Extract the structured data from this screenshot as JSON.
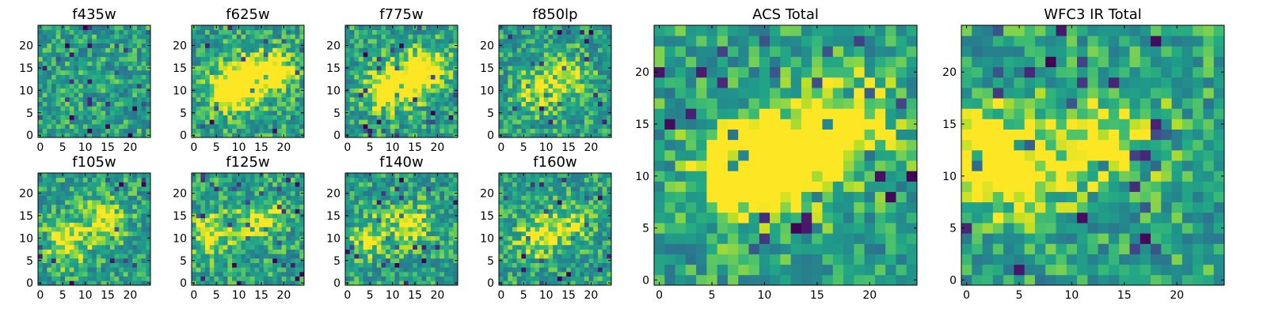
{
  "chart_data": [
    {
      "type": "heatmap",
      "title": "f435w",
      "x_ticks": [
        "0",
        "5",
        "10",
        "15",
        "20"
      ],
      "y_ticks": [
        "0",
        "5",
        "10",
        "15",
        "20"
      ],
      "xlim": [
        -0.5,
        24.5
      ],
      "ylim": [
        -0.5,
        24.5
      ],
      "grid": false,
      "colormap": "viridis",
      "grid_size": 25,
      "source_blobs": []
    },
    {
      "type": "heatmap",
      "title": "f625w",
      "x_ticks": [
        "0",
        "5",
        "10",
        "15",
        "20"
      ],
      "y_ticks": [
        "0",
        "5",
        "10",
        "15",
        "20"
      ],
      "xlim": [
        -0.5,
        24.5
      ],
      "ylim": [
        -0.5,
        24.5
      ],
      "grid": false,
      "colormap": "viridis",
      "grid_size": 25,
      "source_blobs": [
        {
          "x": 8,
          "y": 10,
          "amp": 0.55
        },
        {
          "x": 13,
          "y": 12.5,
          "amp": 0.45
        },
        {
          "x": 18,
          "y": 14.5,
          "amp": 0.4
        }
      ]
    },
    {
      "type": "heatmap",
      "title": "f775w",
      "x_ticks": [
        "0",
        "5",
        "10",
        "15",
        "20"
      ],
      "y_ticks": [
        "0",
        "5",
        "10",
        "15",
        "20"
      ],
      "xlim": [
        -0.5,
        24.5
      ],
      "ylim": [
        -0.5,
        24.5
      ],
      "grid": false,
      "colormap": "viridis",
      "grid_size": 25,
      "source_blobs": [
        {
          "x": 8,
          "y": 10,
          "amp": 0.45
        },
        {
          "x": 14,
          "y": 12.5,
          "amp": 0.4
        },
        {
          "x": 18,
          "y": 15,
          "amp": 0.35
        }
      ]
    },
    {
      "type": "heatmap",
      "title": "f850lp",
      "x_ticks": [
        "0",
        "5",
        "10",
        "15",
        "20"
      ],
      "y_ticks": [
        "0",
        "5",
        "10",
        "15",
        "20"
      ],
      "xlim": [
        -0.5,
        24.5
      ],
      "ylim": [
        -0.5,
        24.5
      ],
      "grid": false,
      "colormap": "viridis",
      "grid_size": 25,
      "source_blobs": [
        {
          "x": 8,
          "y": 10,
          "amp": 0.3
        },
        {
          "x": 15,
          "y": 13,
          "amp": 0.25
        }
      ]
    },
    {
      "type": "heatmap",
      "title": "f105w",
      "x_ticks": [
        "0",
        "5",
        "10",
        "15",
        "20"
      ],
      "y_ticks": [
        "0",
        "5",
        "10",
        "15",
        "20"
      ],
      "xlim": [
        -0.5,
        24.5
      ],
      "ylim": [
        -0.5,
        24.5
      ],
      "grid": false,
      "colormap": "viridis",
      "grid_size": 25,
      "source_blobs": [
        {
          "x": 6,
          "y": 9,
          "amp": 0.35
        },
        {
          "x": 14,
          "y": 14,
          "amp": 0.3
        }
      ]
    },
    {
      "type": "heatmap",
      "title": "f125w",
      "x_ticks": [
        "0",
        "5",
        "10",
        "15",
        "20"
      ],
      "y_ticks": [
        "0",
        "5",
        "10",
        "15",
        "20"
      ],
      "xlim": [
        -0.5,
        24.5
      ],
      "ylim": [
        -0.5,
        24.5
      ],
      "grid": false,
      "colormap": "viridis",
      "grid_size": 25,
      "source_blobs": [
        {
          "x": 4,
          "y": 11,
          "amp": 0.35
        },
        {
          "x": 15,
          "y": 14,
          "amp": 0.3
        }
      ]
    },
    {
      "type": "heatmap",
      "title": "f140w",
      "x_ticks": [
        "0",
        "5",
        "10",
        "15",
        "20"
      ],
      "y_ticks": [
        "0",
        "5",
        "10",
        "15",
        "20"
      ],
      "xlim": [
        -0.5,
        24.5
      ],
      "ylim": [
        -0.5,
        24.5
      ],
      "grid": false,
      "colormap": "viridis",
      "grid_size": 25,
      "source_blobs": [
        {
          "x": 5,
          "y": 10,
          "amp": 0.3
        },
        {
          "x": 14,
          "y": 13,
          "amp": 0.3
        }
      ]
    },
    {
      "type": "heatmap",
      "title": "f160w",
      "x_ticks": [
        "0",
        "5",
        "10",
        "15",
        "20"
      ],
      "y_ticks": [
        "0",
        "5",
        "10",
        "15",
        "20"
      ],
      "xlim": [
        -0.5,
        24.5
      ],
      "ylim": [
        -0.5,
        24.5
      ],
      "grid": false,
      "colormap": "viridis",
      "grid_size": 25,
      "source_blobs": [
        {
          "x": 8,
          "y": 10,
          "amp": 0.3
        },
        {
          "x": 15,
          "y": 13,
          "amp": 0.25
        }
      ]
    },
    {
      "type": "heatmap",
      "title": "ACS Total",
      "x_ticks": [
        "0",
        "5",
        "10",
        "15",
        "20"
      ],
      "y_ticks": [
        "0",
        "5",
        "10",
        "15",
        "20"
      ],
      "xlim": [
        -0.5,
        24.5
      ],
      "ylim": [
        -0.5,
        24.5
      ],
      "grid": false,
      "colormap": "viridis",
      "grid_size": 25,
      "source_blobs": [
        {
          "x": 8,
          "y": 10,
          "amp": 0.5
        },
        {
          "x": 13,
          "y": 12,
          "amp": 0.4
        },
        {
          "x": 18,
          "y": 15,
          "amp": 0.4
        }
      ]
    },
    {
      "type": "heatmap",
      "title": "WFC3 IR Total",
      "x_ticks": [
        "0",
        "5",
        "10",
        "15",
        "20"
      ],
      "y_ticks": [
        "0",
        "5",
        "10",
        "15",
        "20"
      ],
      "xlim": [
        -0.5,
        24.5
      ],
      "ylim": [
        -0.5,
        24.5
      ],
      "grid": false,
      "colormap": "viridis",
      "grid_size": 25,
      "source_blobs": [
        {
          "x": 1,
          "y": 12,
          "amp": 0.45
        },
        {
          "x": 6,
          "y": 11,
          "amp": 0.3
        },
        {
          "x": 14,
          "y": 14,
          "amp": 0.35
        }
      ]
    }
  ]
}
